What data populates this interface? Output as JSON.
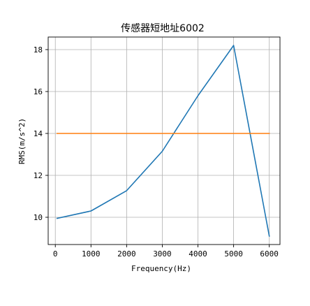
{
  "chart_data": {
    "type": "line",
    "title": "传感器短地址6002",
    "xlabel": "Frequency(Hz)",
    "ylabel": "RMS(m/s^2)",
    "xlim": [
      -200,
      6300
    ],
    "ylim": [
      8.7,
      18.6
    ],
    "xticks": [
      0,
      1000,
      2000,
      3000,
      4000,
      5000,
      6000
    ],
    "xtick_labels": [
      "0",
      "1000",
      "2000",
      "3000",
      "4000",
      "5000",
      "6000"
    ],
    "yticks": [
      10,
      12,
      14,
      16,
      18
    ],
    "ytick_labels": [
      "10",
      "12",
      "14",
      "16",
      "18"
    ],
    "grid": true,
    "series": [
      {
        "color": "#1f77b4",
        "x": [
          50,
          1000,
          2000,
          3000,
          4000,
          5000,
          6000
        ],
        "y": [
          9.95,
          10.3,
          11.27,
          13.15,
          15.8,
          18.2,
          9.1
        ]
      },
      {
        "color": "#ff7f0e",
        "x": [
          50,
          6000
        ],
        "y": [
          14.0,
          14.0
        ]
      }
    ]
  }
}
